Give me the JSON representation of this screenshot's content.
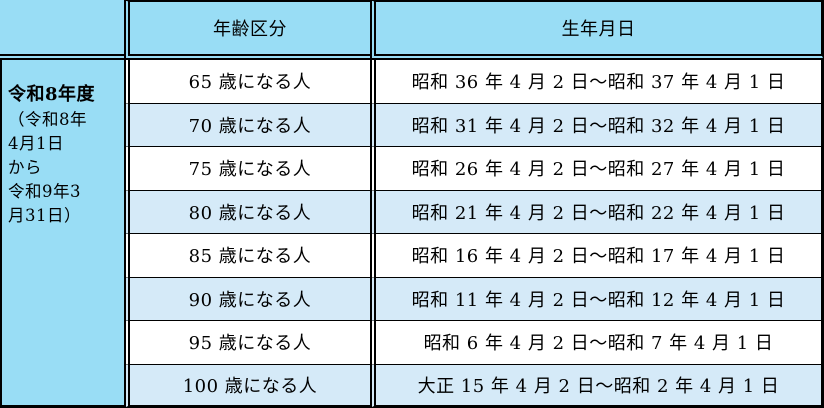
{
  "colors": {
    "page_background": "#99ddf5",
    "header_bg": "#99ddf5",
    "row_alt_bg": "#d5eaf8",
    "row_bg": "#ffffff",
    "border": "#000000",
    "text": "#000000"
  },
  "table": {
    "header": {
      "age_label": "年齢区分",
      "birth_label": "生年月日"
    },
    "fiscal_year": {
      "title": "令和8年度",
      "subtitle_lines": [
        "（令和8年",
        "4月1日",
        "から",
        "令和9年3",
        "月31日）"
      ]
    },
    "rows": [
      {
        "age": "65 歳になる人",
        "birth": "昭和 36 年 4 月 2 日～昭和 37 年 4 月 1 日"
      },
      {
        "age": "70 歳になる人",
        "birth": "昭和 31 年 4 月 2 日～昭和 32 年 4 月 1 日"
      },
      {
        "age": "75 歳になる人",
        "birth": "昭和 26 年 4 月 2 日～昭和 27 年 4 月 1 日"
      },
      {
        "age": "80 歳になる人",
        "birth": "昭和 21 年 4 月 2 日～昭和 22 年 4 月 1 日"
      },
      {
        "age": "85 歳になる人",
        "birth": "昭和 16 年 4 月 2 日～昭和 17 年 4 月 1 日"
      },
      {
        "age": "90 歳になる人",
        "birth": "昭和 11 年 4 月 2 日～昭和 12 年 4 月 1 日"
      },
      {
        "age": "95 歳になる人",
        "birth": "昭和 6 年 4 月 2 日～昭和 7 年 4 月 1 日"
      },
      {
        "age": "100 歳になる人",
        "birth": "大正 15 年 4 月 2 日～昭和 2 年 4 月 1 日"
      }
    ]
  }
}
